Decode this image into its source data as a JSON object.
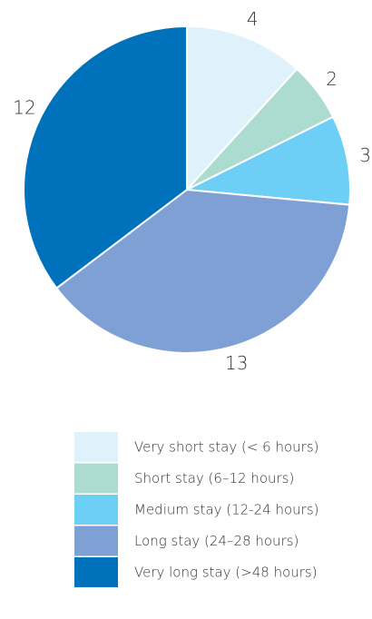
{
  "chart_data": {
    "type": "pie",
    "categories": [
      "Very short stay (< 6 hours)",
      "Short stay (6–12 hours)",
      "Medium stay (12-24 hours)",
      "Long stay (24–28 hours)",
      "Very long stay (>48 hours)"
    ],
    "values": [
      4,
      2,
      3,
      13,
      12
    ],
    "colors": [
      "#dff1fb",
      "#acdcd0",
      "#6dcff6",
      "#7fa0d4",
      "#0072bc"
    ]
  }
}
